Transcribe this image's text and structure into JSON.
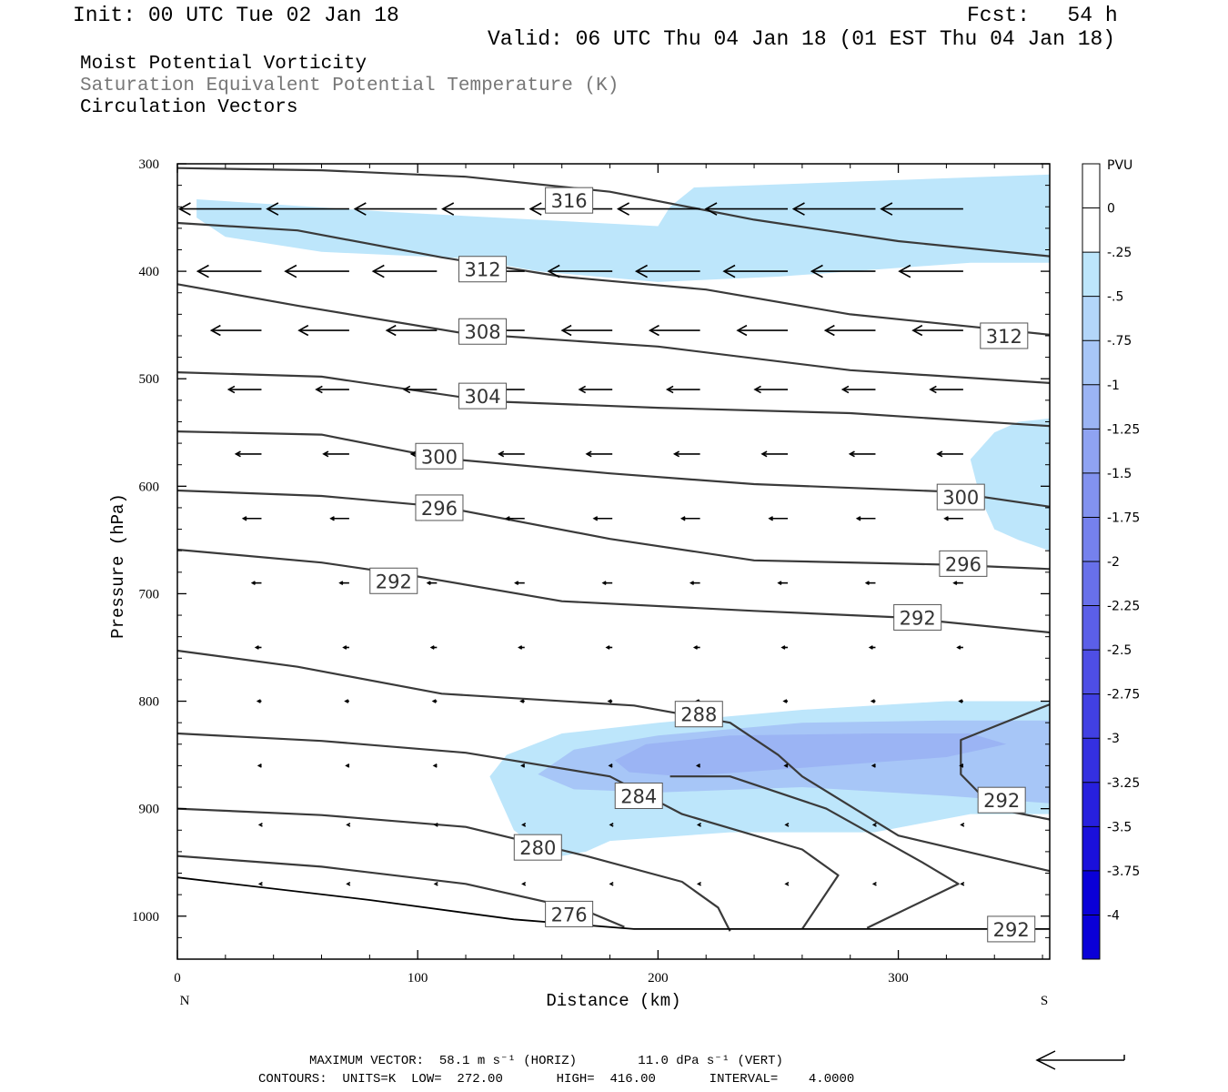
{
  "header": {
    "init": "Init: 00 UTC Tue 02 Jan 18",
    "fcst": "Fcst:   54 h",
    "valid": "Valid: 06 UTC Thu 04 Jan 18 (01 EST Thu 04 Jan 18)"
  },
  "legend": {
    "line1": "Moist Potential Vorticity",
    "line2": "Saturation Equivalent Potential Temperature (K)",
    "line3": "Circulation Vectors"
  },
  "colors": {
    "pv_light": "#bde6fb",
    "pv_mid": "#a7c6f7",
    "pv_dark": "#9bb4f4",
    "contour": "#3a3a3a",
    "vector": "#000000"
  },
  "chart_data": {
    "type": "cross-section",
    "xlabel": "Distance (km)",
    "ylabel": "Pressure (hPa)",
    "x_ticks": [
      0,
      100,
      200,
      300
    ],
    "y_ticks": [
      300,
      400,
      500,
      600,
      700,
      800,
      900,
      1000
    ],
    "xlim": [
      0,
      363
    ],
    "ylim": [
      1040,
      300
    ],
    "left_end_label": "N",
    "right_end_label": "S",
    "colorbar": {
      "unit": "PVU",
      "ticks": [
        "0",
        "-.25",
        "-.5",
        "-.75",
        "-1",
        "-1.25",
        "-1.5",
        "-1.75",
        "-2",
        "-2.25",
        "-2.5",
        "-2.75",
        "-3",
        "-3.25",
        "-3.5",
        "-3.75",
        "-4"
      ],
      "colors": [
        "#ffffff",
        "#ffffff",
        "#bde6fb",
        "#b3d6f9",
        "#a7c6f7",
        "#9bb4f4",
        "#8fa3f2",
        "#8292ef",
        "#7581ed",
        "#6870ea",
        "#5b5fe8",
        "#4e4ee5",
        "#4140e3",
        "#3430e0",
        "#2720de",
        "#1a10db",
        "#0a00d8"
      ]
    },
    "contours": [
      {
        "label": "316",
        "points": [
          [
            0,
            304
          ],
          [
            60,
            306
          ],
          [
            120,
            312
          ],
          [
            180,
            326
          ],
          [
            240,
            352
          ],
          [
            300,
            372
          ],
          [
            363,
            386
          ]
        ],
        "labels_at": [
          [
            163,
            334
          ]
        ]
      },
      {
        "label": "312",
        "points": [
          [
            0,
            355
          ],
          [
            50,
            362
          ],
          [
            110,
            387
          ],
          [
            160,
            405
          ],
          [
            220,
            417
          ],
          [
            280,
            440
          ],
          [
            363,
            459
          ]
        ],
        "labels_at": [
          [
            127,
            398
          ],
          [
            344,
            460
          ]
        ]
      },
      {
        "label": "308",
        "points": [
          [
            0,
            412
          ],
          [
            50,
            432
          ],
          [
            120,
            458
          ],
          [
            200,
            470
          ],
          [
            280,
            492
          ],
          [
            363,
            504
          ]
        ],
        "labels_at": [
          [
            127,
            456
          ]
        ]
      },
      {
        "label": "304",
        "points": [
          [
            0,
            494
          ],
          [
            60,
            498
          ],
          [
            130,
            521
          ],
          [
            200,
            527
          ],
          [
            280,
            532
          ],
          [
            363,
            544
          ]
        ],
        "labels_at": [
          [
            127,
            516
          ]
        ]
      },
      {
        "label": "300",
        "points": [
          [
            0,
            549
          ],
          [
            60,
            552
          ],
          [
            110,
            574
          ],
          [
            180,
            588
          ],
          [
            240,
            598
          ],
          [
            320,
            605
          ],
          [
            363,
            619
          ]
        ],
        "labels_at": [
          [
            109,
            572
          ],
          [
            326,
            610
          ]
        ]
      },
      {
        "label": "296",
        "points": [
          [
            0,
            604
          ],
          [
            60,
            609
          ],
          [
            110,
            619
          ],
          [
            180,
            649
          ],
          [
            240,
            669
          ],
          [
            320,
            673
          ],
          [
            363,
            677
          ]
        ],
        "labels_at": [
          [
            109,
            620
          ],
          [
            327,
            672
          ]
        ]
      },
      {
        "label": "292",
        "points": [
          [
            0,
            659
          ],
          [
            60,
            671
          ],
          [
            100,
            684
          ],
          [
            160,
            707
          ],
          [
            240,
            716
          ],
          [
            300,
            722
          ],
          [
            363,
            736
          ]
        ],
        "labels_at": [
          [
            90,
            688
          ],
          [
            308,
            722
          ]
        ]
      },
      {
        "label": "288",
        "points": [
          [
            0,
            753
          ],
          [
            50,
            768
          ],
          [
            110,
            793
          ],
          [
            190,
            804
          ],
          [
            230,
            820
          ],
          [
            250,
            850
          ],
          [
            260,
            870
          ],
          [
            300,
            925
          ],
          [
            363,
            958
          ]
        ],
        "labels_at": [
          [
            217,
            812
          ]
        ]
      },
      {
        "label": "284",
        "points": [
          [
            0,
            830
          ],
          [
            60,
            837
          ],
          [
            120,
            848
          ],
          [
            180,
            870
          ],
          [
            210,
            905
          ],
          [
            260,
            938
          ],
          [
            275,
            962
          ],
          [
            260,
            1012
          ]
        ],
        "labels_at": [
          [
            192,
            888
          ]
        ]
      },
      {
        "label": "280",
        "points": [
          [
            0,
            900
          ],
          [
            60,
            906
          ],
          [
            120,
            917
          ],
          [
            170,
            944
          ],
          [
            210,
            968
          ],
          [
            225,
            992
          ],
          [
            230,
            1014
          ]
        ],
        "labels_at": [
          [
            150,
            936
          ]
        ]
      },
      {
        "label": "276",
        "points": [
          [
            0,
            944
          ],
          [
            60,
            954
          ],
          [
            120,
            970
          ],
          [
            170,
            995
          ],
          [
            186,
            1010
          ]
        ],
        "labels_at": [
          [
            163,
            998
          ]
        ]
      },
      {
        "label": "292",
        "points": [
          [
            363,
            803
          ],
          [
            326,
            836
          ],
          [
            326,
            868
          ],
          [
            340,
            900
          ],
          [
            363,
            910
          ]
        ],
        "labels_at": [
          [
            343,
            892
          ]
        ]
      },
      {
        "label": "292",
        "points": [
          [
            287,
            1011
          ],
          [
            325,
            970
          ],
          [
            310,
            950
          ],
          [
            270,
            900
          ],
          [
            230,
            870
          ],
          [
            205,
            870
          ]
        ],
        "labels_at": [
          [
            347,
            1012
          ]
        ]
      }
    ],
    "max_vector": "MAXIMUM VECTOR:  58.1 m s⁻¹ (HORIZ)        11.0 dPa s⁻¹ (VERT)",
    "contour_info": "CONTOURS:  UNITS=K  LOW=  272.00       HIGH=  416.00       INTERVAL=    4.0000"
  }
}
